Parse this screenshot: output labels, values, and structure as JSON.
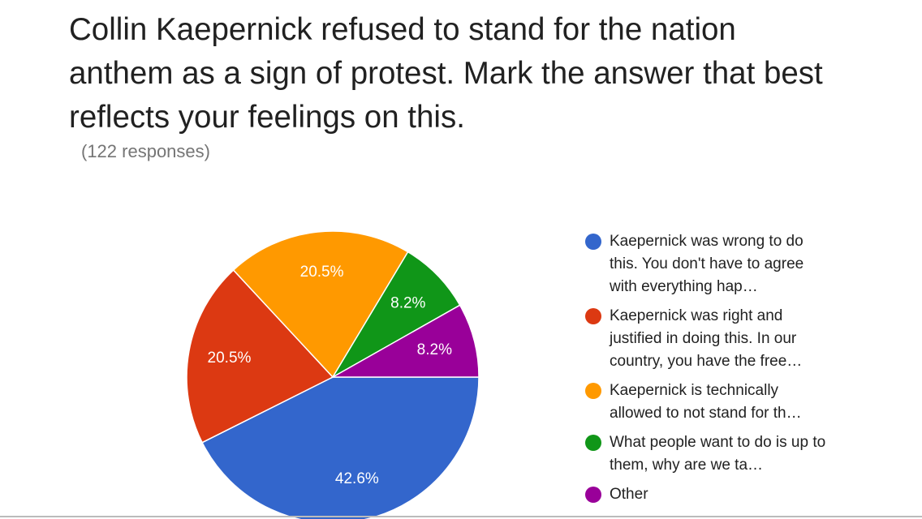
{
  "chart_data": {
    "type": "pie",
    "title": "Collin Kaepernick refused to stand for the nation anthem as a sign of protest. Mark the answer that best reflects your feelings on this.",
    "subtitle": "(122 responses)",
    "categories": [
      "Kaepernick was wrong to do this. You don't have to agree with everything hap…",
      "Kaepernick was right and justified in doing this. In our country, you have the free…",
      "Kaepernick is technically allowed to not stand for th…",
      "What people want to do is up to them, why are we ta…",
      "Other"
    ],
    "values": [
      42.6,
      20.5,
      20.5,
      8.2,
      8.2
    ],
    "value_labels": [
      "42.6%",
      "20.5%",
      "20.5%",
      "8.2%",
      "8.2%"
    ],
    "colors": [
      "#3366cc",
      "#dc3912",
      "#ff9900",
      "#109618",
      "#990099"
    ],
    "legend": "right"
  }
}
